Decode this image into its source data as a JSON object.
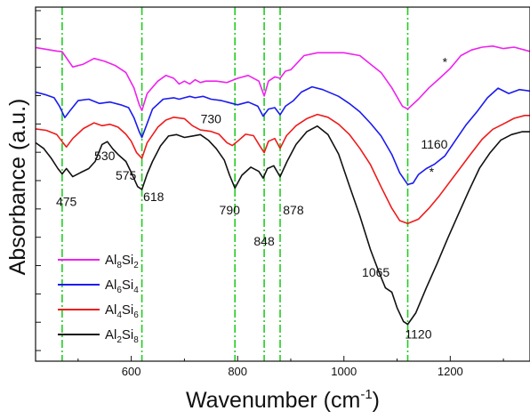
{
  "chart_data": {
    "type": "line",
    "xlabel": "Wavenumber (cm",
    "xlabel_sup": "-1",
    "xlabel_close": ")",
    "ylabel": "Absorbance (a.u.)",
    "xlim": [
      420,
      1350
    ],
    "ylim": [
      0,
      1
    ],
    "y_tick_labels_shown": false,
    "x_ticks": [
      600,
      800,
      1000,
      1200
    ],
    "x_tick_labels": [
      "600",
      "800",
      "1000",
      "1200"
    ],
    "y_ticks": [
      0.03,
      0.11,
      0.19,
      0.27,
      0.35,
      0.43,
      0.51,
      0.59,
      0.67,
      0.75,
      0.83,
      0.91,
      0.99
    ],
    "reference_lines": [
      470,
      620,
      795,
      850,
      880,
      1120
    ],
    "reference_line_color": "#22cc22",
    "legend_position": "bottom-left",
    "legend": [
      {
        "base": "Al",
        "sub1": "8",
        "mid": "Si",
        "sub2": "2"
      },
      {
        "base": "Al",
        "sub1": "6",
        "mid": "Si",
        "sub2": "4"
      },
      {
        "base": "Al",
        "sub1": "4",
        "mid": "Si",
        "sub2": "6"
      },
      {
        "base": "Al",
        "sub1": "2",
        "mid": "Si",
        "sub2": "8"
      }
    ],
    "series": [
      {
        "name": "Al8Si2",
        "color": "#ee22ee",
        "points": [
          [
            420,
            0.886
          ],
          [
            440,
            0.881
          ],
          [
            460,
            0.876
          ],
          [
            470,
            0.874
          ],
          [
            475,
            0.863
          ],
          [
            490,
            0.831
          ],
          [
            510,
            0.839
          ],
          [
            530,
            0.855
          ],
          [
            550,
            0.847
          ],
          [
            570,
            0.835
          ],
          [
            590,
            0.815
          ],
          [
            605,
            0.772
          ],
          [
            615,
            0.724
          ],
          [
            620,
            0.708
          ],
          [
            630,
            0.756
          ],
          [
            650,
            0.791
          ],
          [
            665,
            0.807
          ],
          [
            680,
            0.799
          ],
          [
            690,
            0.783
          ],
          [
            700,
            0.791
          ],
          [
            710,
            0.783
          ],
          [
            720,
            0.795
          ],
          [
            730,
            0.787
          ],
          [
            740,
            0.791
          ],
          [
            760,
            0.791
          ],
          [
            780,
            0.787
          ],
          [
            800,
            0.799
          ],
          [
            820,
            0.807
          ],
          [
            840,
            0.791
          ],
          [
            850,
            0.749
          ],
          [
            858,
            0.791
          ],
          [
            870,
            0.803
          ],
          [
            880,
            0.799
          ],
          [
            890,
            0.819
          ],
          [
            900,
            0.823
          ],
          [
            915,
            0.847
          ],
          [
            925,
            0.863
          ],
          [
            950,
            0.871
          ],
          [
            1000,
            0.871
          ],
          [
            1030,
            0.863
          ],
          [
            1050,
            0.839
          ],
          [
            1070,
            0.815
          ],
          [
            1090,
            0.772
          ],
          [
            1110,
            0.72
          ],
          [
            1120,
            0.712
          ],
          [
            1140,
            0.74
          ],
          [
            1160,
            0.772
          ],
          [
            1180,
            0.799
          ],
          [
            1200,
            0.827
          ],
          [
            1220,
            0.863
          ],
          [
            1240,
            0.879
          ],
          [
            1260,
            0.887
          ],
          [
            1280,
            0.89
          ],
          [
            1300,
            0.883
          ],
          [
            1320,
            0.887
          ],
          [
            1340,
            0.879
          ],
          [
            1350,
            0.875
          ]
        ]
      },
      {
        "name": "Al6Si4",
        "color": "#1b1bee",
        "points": [
          [
            420,
            0.76
          ],
          [
            440,
            0.752
          ],
          [
            455,
            0.744
          ],
          [
            465,
            0.72
          ],
          [
            475,
            0.688
          ],
          [
            485,
            0.708
          ],
          [
            500,
            0.736
          ],
          [
            520,
            0.74
          ],
          [
            540,
            0.728
          ],
          [
            560,
            0.732
          ],
          [
            580,
            0.724
          ],
          [
            595,
            0.716
          ],
          [
            605,
            0.688
          ],
          [
            615,
            0.648
          ],
          [
            620,
            0.632
          ],
          [
            628,
            0.664
          ],
          [
            640,
            0.712
          ],
          [
            660,
            0.74
          ],
          [
            680,
            0.744
          ],
          [
            690,
            0.74
          ],
          [
            700,
            0.744
          ],
          [
            710,
            0.748
          ],
          [
            720,
            0.744
          ],
          [
            735,
            0.748
          ],
          [
            750,
            0.74
          ],
          [
            770,
            0.736
          ],
          [
            790,
            0.728
          ],
          [
            800,
            0.724
          ],
          [
            820,
            0.732
          ],
          [
            838,
            0.72
          ],
          [
            848,
            0.692
          ],
          [
            858,
            0.712
          ],
          [
            870,
            0.716
          ],
          [
            880,
            0.696
          ],
          [
            890,
            0.72
          ],
          [
            905,
            0.736
          ],
          [
            920,
            0.76
          ],
          [
            940,
            0.775
          ],
          [
            960,
            0.767
          ],
          [
            990,
            0.748
          ],
          [
            1010,
            0.728
          ],
          [
            1030,
            0.704
          ],
          [
            1050,
            0.672
          ],
          [
            1070,
            0.636
          ],
          [
            1090,
            0.584
          ],
          [
            1105,
            0.532
          ],
          [
            1120,
            0.499
          ],
          [
            1130,
            0.503
          ],
          [
            1140,
            0.527
          ],
          [
            1155,
            0.544
          ],
          [
            1170,
            0.556
          ],
          [
            1190,
            0.58
          ],
          [
            1210,
            0.624
          ],
          [
            1230,
            0.668
          ],
          [
            1250,
            0.704
          ],
          [
            1270,
            0.744
          ],
          [
            1290,
            0.771
          ],
          [
            1310,
            0.756
          ],
          [
            1330,
            0.767
          ],
          [
            1350,
            0.763
          ]
        ]
      },
      {
        "name": "Al4Si6",
        "color": "#ee1b1b",
        "points": [
          [
            420,
            0.656
          ],
          [
            440,
            0.652
          ],
          [
            460,
            0.64
          ],
          [
            470,
            0.62
          ],
          [
            478,
            0.605
          ],
          [
            490,
            0.629
          ],
          [
            510,
            0.657
          ],
          [
            530,
            0.673
          ],
          [
            545,
            0.665
          ],
          [
            560,
            0.669
          ],
          [
            575,
            0.661
          ],
          [
            590,
            0.641
          ],
          [
            600,
            0.621
          ],
          [
            610,
            0.589
          ],
          [
            620,
            0.573
          ],
          [
            630,
            0.617
          ],
          [
            650,
            0.661
          ],
          [
            665,
            0.681
          ],
          [
            680,
            0.689
          ],
          [
            700,
            0.685
          ],
          [
            715,
            0.665
          ],
          [
            730,
            0.653
          ],
          [
            750,
            0.649
          ],
          [
            765,
            0.641
          ],
          [
            780,
            0.617
          ],
          [
            790,
            0.609
          ],
          [
            800,
            0.621
          ],
          [
            815,
            0.641
          ],
          [
            830,
            0.637
          ],
          [
            843,
            0.605
          ],
          [
            850,
            0.589
          ],
          [
            858,
            0.621
          ],
          [
            870,
            0.629
          ],
          [
            880,
            0.601
          ],
          [
            892,
            0.637
          ],
          [
            910,
            0.665
          ],
          [
            930,
            0.685
          ],
          [
            950,
            0.697
          ],
          [
            970,
            0.689
          ],
          [
            990,
            0.669
          ],
          [
            1010,
            0.641
          ],
          [
            1030,
            0.601
          ],
          [
            1050,
            0.555
          ],
          [
            1070,
            0.492
          ],
          [
            1090,
            0.432
          ],
          [
            1105,
            0.397
          ],
          [
            1120,
            0.389
          ],
          [
            1140,
            0.401
          ],
          [
            1160,
            0.432
          ],
          [
            1180,
            0.468
          ],
          [
            1200,
            0.508
          ],
          [
            1220,
            0.548
          ],
          [
            1240,
            0.588
          ],
          [
            1260,
            0.627
          ],
          [
            1280,
            0.655
          ],
          [
            1300,
            0.67
          ],
          [
            1320,
            0.686
          ],
          [
            1340,
            0.694
          ],
          [
            1350,
            0.694
          ]
        ]
      },
      {
        "name": "Al2Si8",
        "color": "#111111",
        "points": [
          [
            420,
            0.617
          ],
          [
            435,
            0.601
          ],
          [
            450,
            0.572
          ],
          [
            462,
            0.544
          ],
          [
            470,
            0.529
          ],
          [
            478,
            0.544
          ],
          [
            490,
            0.521
          ],
          [
            505,
            0.533
          ],
          [
            520,
            0.544
          ],
          [
            532,
            0.564
          ],
          [
            545,
            0.612
          ],
          [
            555,
            0.62
          ],
          [
            565,
            0.6
          ],
          [
            575,
            0.584
          ],
          [
            590,
            0.564
          ],
          [
            600,
            0.533
          ],
          [
            612,
            0.493
          ],
          [
            620,
            0.485
          ],
          [
            630,
            0.529
          ],
          [
            640,
            0.564
          ],
          [
            655,
            0.608
          ],
          [
            670,
            0.636
          ],
          [
            685,
            0.64
          ],
          [
            700,
            0.632
          ],
          [
            715,
            0.636
          ],
          [
            730,
            0.64
          ],
          [
            745,
            0.624
          ],
          [
            760,
            0.6
          ],
          [
            775,
            0.568
          ],
          [
            785,
            0.525
          ],
          [
            795,
            0.489
          ],
          [
            808,
            0.525
          ],
          [
            825,
            0.548
          ],
          [
            840,
            0.536
          ],
          [
            848,
            0.517
          ],
          [
            856,
            0.544
          ],
          [
            868,
            0.552
          ],
          [
            880,
            0.521
          ],
          [
            893,
            0.564
          ],
          [
            910,
            0.612
          ],
          [
            930,
            0.648
          ],
          [
            950,
            0.664
          ],
          [
            970,
            0.64
          ],
          [
            990,
            0.585
          ],
          [
            1010,
            0.497
          ],
          [
            1030,
            0.41
          ],
          [
            1050,
            0.315
          ],
          [
            1065,
            0.255
          ],
          [
            1078,
            0.207
          ],
          [
            1090,
            0.195
          ],
          [
            1100,
            0.151
          ],
          [
            1112,
            0.112
          ],
          [
            1120,
            0.104
          ],
          [
            1135,
            0.136
          ],
          [
            1155,
            0.207
          ],
          [
            1175,
            0.275
          ],
          [
            1195,
            0.346
          ],
          [
            1215,
            0.414
          ],
          [
            1235,
            0.481
          ],
          [
            1255,
            0.545
          ],
          [
            1275,
            0.589
          ],
          [
            1295,
            0.624
          ],
          [
            1315,
            0.64
          ],
          [
            1335,
            0.648
          ],
          [
            1350,
            0.648
          ]
        ]
      }
    ],
    "annotations": [
      {
        "text": "475",
        "x": 478,
        "y": 0.438
      },
      {
        "text": "530",
        "x": 550,
        "y": 0.568
      },
      {
        "text": "575",
        "x": 590,
        "y": 0.512
      },
      {
        "text": "618",
        "x": 642,
        "y": 0.452
      },
      {
        "text": "730",
        "x": 750,
        "y": 0.672
      },
      {
        "text": "790",
        "x": 785,
        "y": 0.414
      },
      {
        "text": "848",
        "x": 850,
        "y": 0.327
      },
      {
        "text": "878",
        "x": 905,
        "y": 0.414
      },
      {
        "text": "1065",
        "x": 1060,
        "y": 0.239
      },
      {
        "text": "1120",
        "x": 1140,
        "y": 0.064
      },
      {
        "text": "1160",
        "x": 1170,
        "y": 0.6
      },
      {
        "text": "*",
        "x": 1165,
        "y": 0.522
      },
      {
        "text": "*",
        "x": 1190,
        "y": 0.833
      }
    ]
  }
}
